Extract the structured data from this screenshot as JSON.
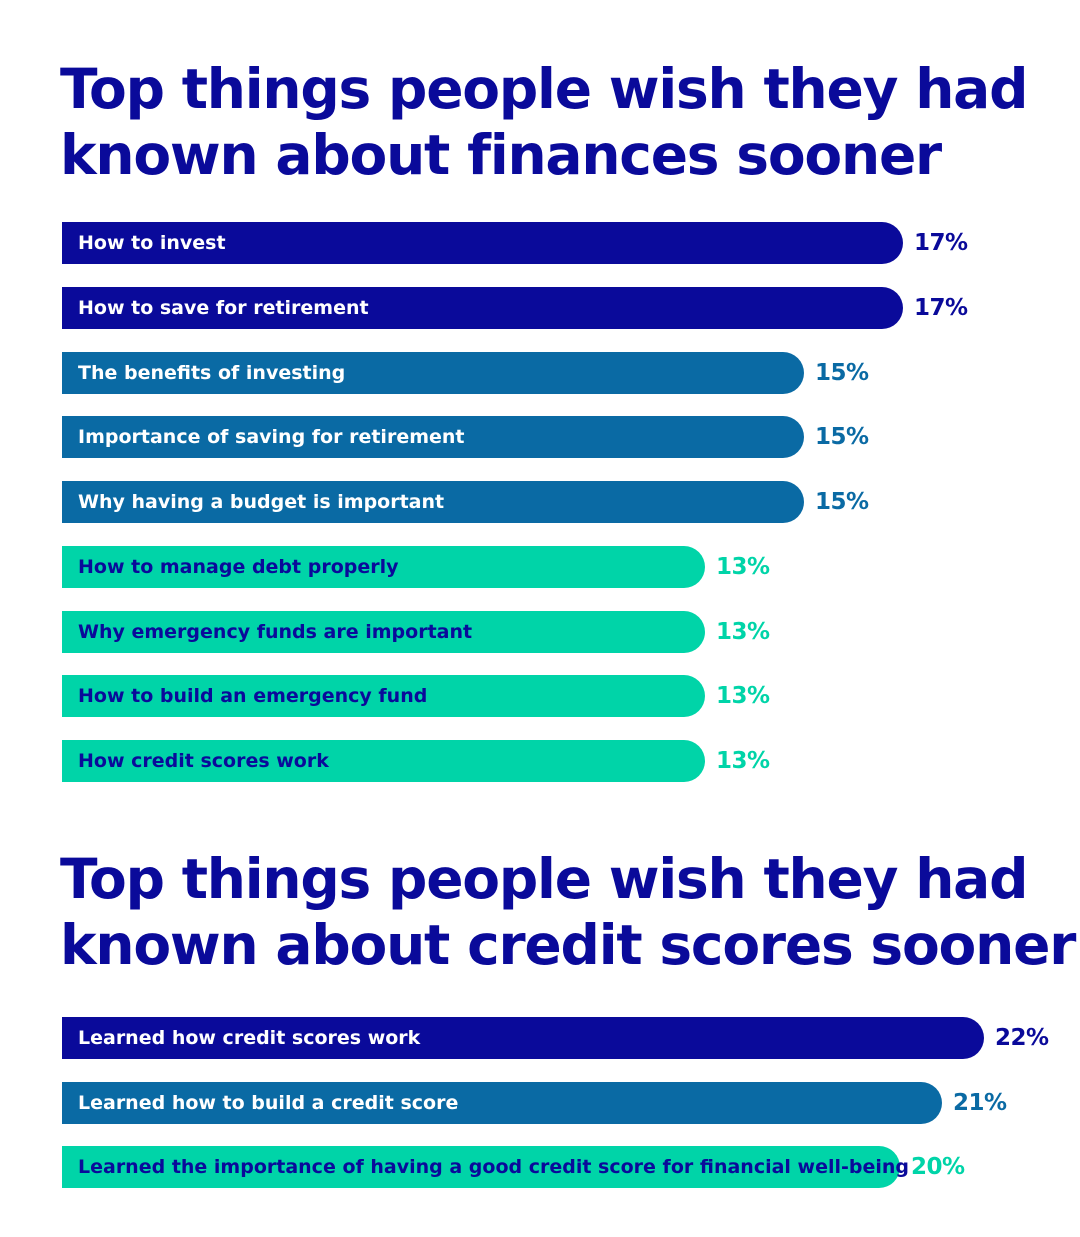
{
  "colors": {
    "title": "#0a0a9a",
    "dark_blue": "#0a0a9a",
    "mid_blue": "#0a6aa4",
    "teal": "#00d4a8",
    "label_on_dark": "#ffffff",
    "label_on_teal": "#0a0a9a"
  },
  "chart_data": [
    {
      "type": "bar",
      "orientation": "horizontal",
      "title": "Top things people wish they had\nknown about finances sooner",
      "unit": "%",
      "categories": [
        "How to invest",
        "How to save for retirement",
        "The benefits of investing",
        "Importance of saving for retirement",
        "Why having a budget is important",
        "How to manage debt properly",
        "Why emergency funds are important",
        "How to build an emergency fund",
        "How credit scores work"
      ],
      "values": [
        17,
        17,
        15,
        15,
        15,
        13,
        13,
        13,
        13
      ],
      "value_labels": [
        "17%",
        "17%",
        "15%",
        "15%",
        "15%",
        "13%",
        "13%",
        "13%",
        "13%"
      ],
      "bar_colors": [
        "#0a0a9a",
        "#0a0a9a",
        "#0a6aa4",
        "#0a6aa4",
        "#0a6aa4",
        "#00d4a8",
        "#00d4a8",
        "#00d4a8",
        "#00d4a8"
      ],
      "grid": false,
      "legend": "none"
    },
    {
      "type": "bar",
      "orientation": "horizontal",
      "title": "Top things people wish they had\nknown about credit scores sooner",
      "unit": "%",
      "categories": [
        "Learned how credit scores work",
        "Learned how to build a credit score",
        "Learned the importance of having a good credit score for financial well-being"
      ],
      "values": [
        22,
        21,
        20
      ],
      "value_labels": [
        "22%",
        "21%",
        "20%"
      ],
      "bar_colors": [
        "#0a0a9a",
        "#0a6aa4",
        "#00d4a8"
      ],
      "grid": false,
      "legend": "none"
    }
  ]
}
